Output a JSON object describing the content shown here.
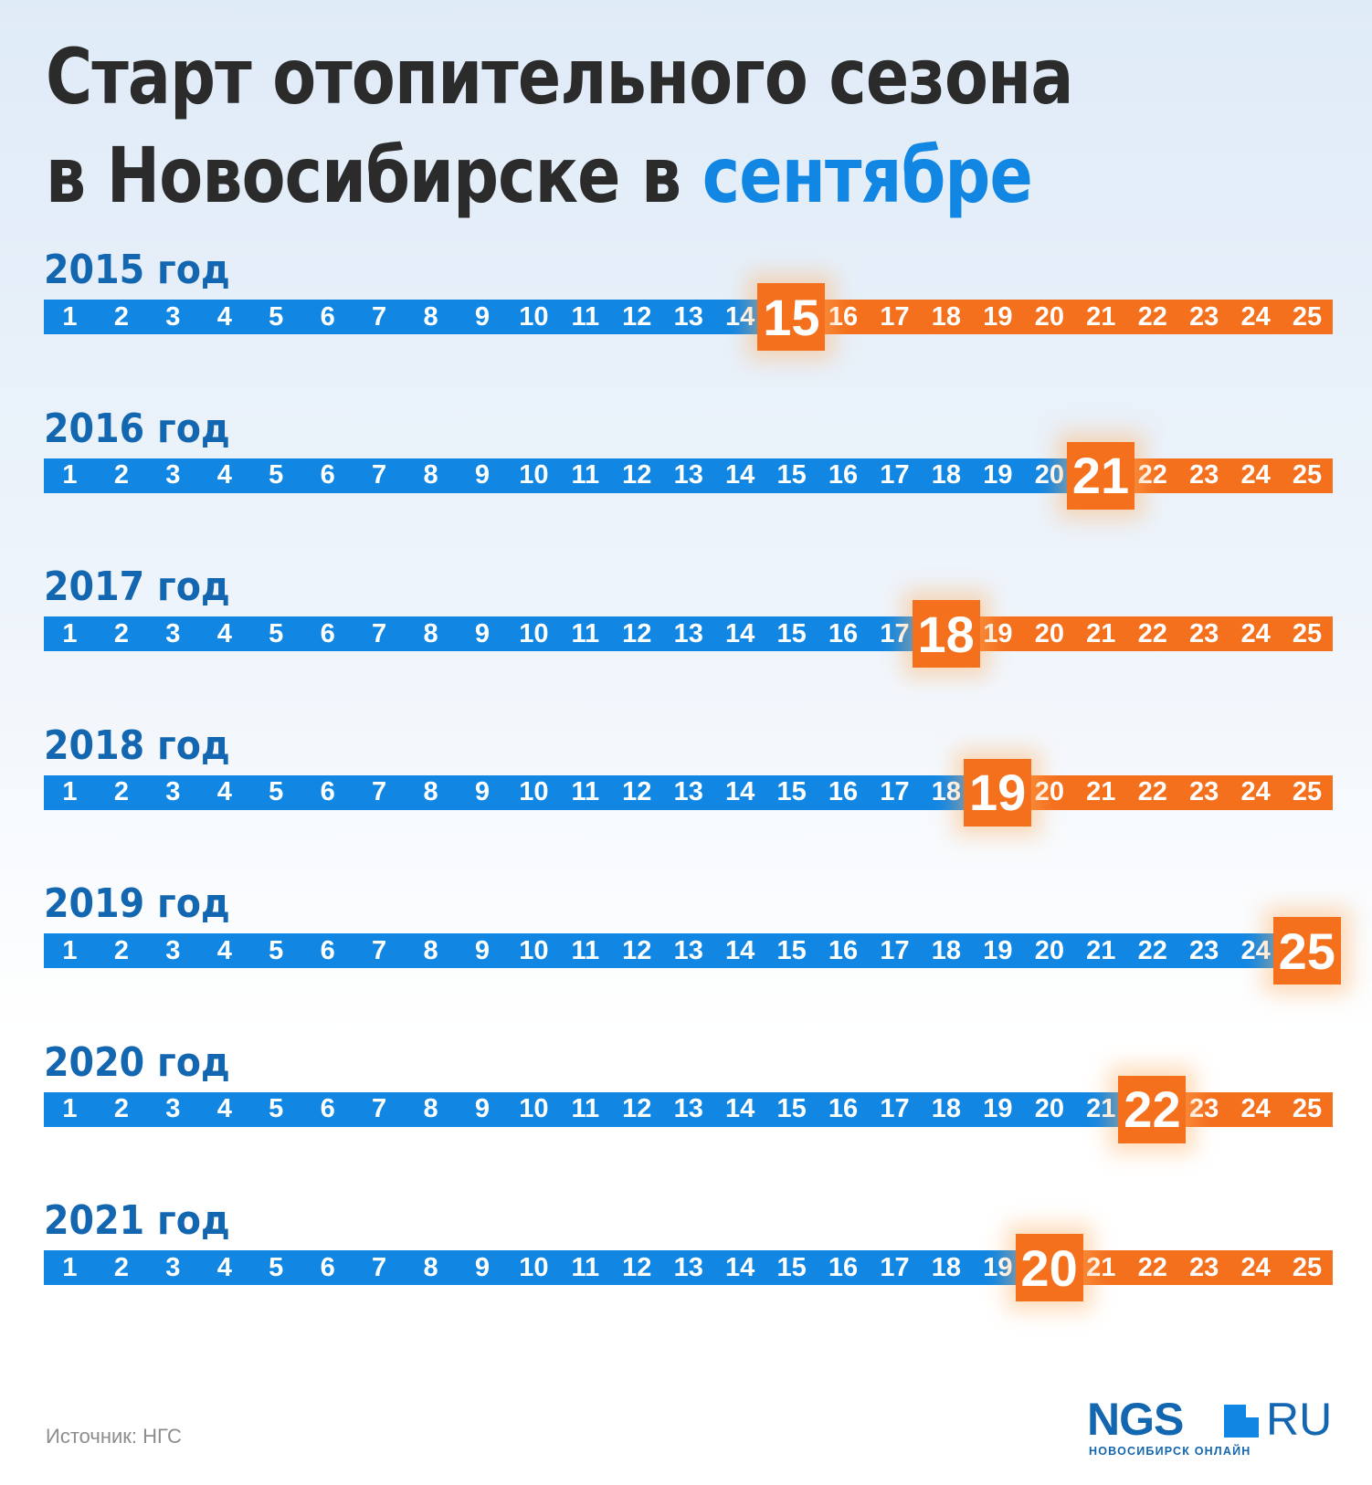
{
  "title": {
    "line1": "Старт отопительного сезона",
    "line2_prefix": "в Новосибирске в ",
    "line2_highlight": "сентябре"
  },
  "colors": {
    "before_start": "#1187e3",
    "after_start": "#f4701d",
    "title": "#2b2b2b",
    "year_label": "#1366b0"
  },
  "days": [
    1,
    2,
    3,
    4,
    5,
    6,
    7,
    8,
    9,
    10,
    11,
    12,
    13,
    14,
    15,
    16,
    17,
    18,
    19,
    20,
    21,
    22,
    23,
    24,
    25
  ],
  "rows": [
    {
      "label": "2015 год",
      "start_day": 15
    },
    {
      "label": "2016 год",
      "start_day": 21
    },
    {
      "label": "2017 год",
      "start_day": 18
    },
    {
      "label": "2018 год",
      "start_day": 19
    },
    {
      "label": "2019 год",
      "start_day": 25
    },
    {
      "label": "2020 год",
      "start_day": 22
    },
    {
      "label": "2021 год",
      "start_day": 20
    }
  ],
  "source": "Источник: НГС",
  "logo": {
    "brand": "NGS",
    "domain": "RU",
    "tagline": "НОВОСИБИРСК ОНЛАЙН"
  }
}
